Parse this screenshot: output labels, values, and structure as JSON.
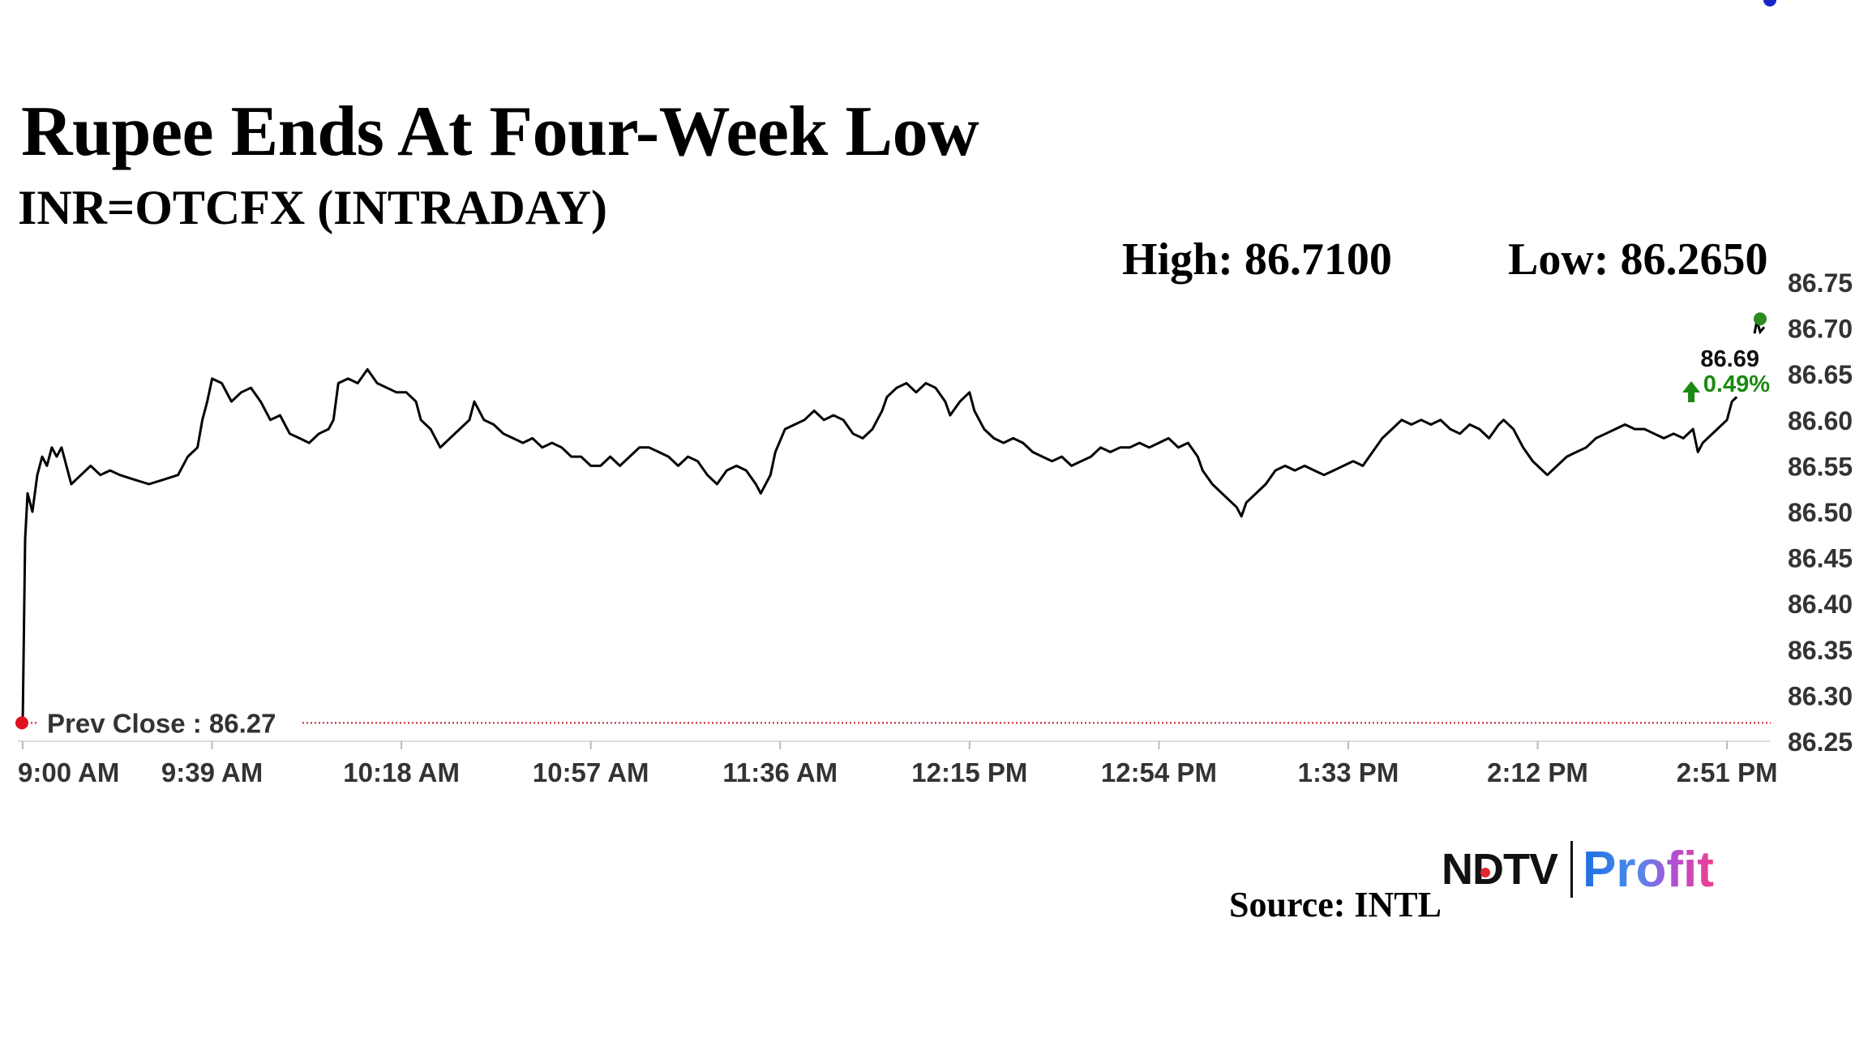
{
  "header": {
    "title": "Rupee Ends At Four-Week Low",
    "subtitle": "INR=OTCFX (INTRADAY)",
    "high_text": "High: 86.7100",
    "low_text": "Low: 86.2650"
  },
  "colors": {
    "line": "#000000",
    "prev_close_line": "#c0192b",
    "prev_close_marker": "#e0111f",
    "high_marker": "#2a8a1e",
    "last_marker": "#1626c8",
    "change_up": "#1c8a12",
    "axis_text": "#333333"
  },
  "chart_data": {
    "type": "line",
    "title": "Rupee Ends At Four-Week Low",
    "subtitle": "INR=OTCFX (INTRADAY)",
    "xlabel": "",
    "ylabel": "",
    "x_ticks": [
      "9:00 AM",
      "9:39 AM",
      "10:18 AM",
      "10:57 AM",
      "11:36 AM",
      "12:15 PM",
      "12:54 PM",
      "1:33 PM",
      "2:12 PM",
      "2:51 PM"
    ],
    "y_ticks": [
      "86.25",
      "86.30",
      "86.35",
      "86.40",
      "86.45",
      "86.50",
      "86.55",
      "86.60",
      "86.65",
      "86.70",
      "86.75"
    ],
    "ylim": [
      86.25,
      86.75
    ],
    "x_range_minutes": [
      0,
      360
    ],
    "grid": false,
    "prev_close": {
      "label": "Prev Close : 86.27",
      "value": 86.27
    },
    "high": 86.71,
    "low": 86.265,
    "last": {
      "value_label": "86.69",
      "change_label": "0.49%",
      "direction": "up"
    },
    "series": [
      {
        "points": [
          [
            0,
            86.27
          ],
          [
            0.5,
            86.47
          ],
          [
            1,
            86.52
          ],
          [
            2,
            86.5
          ],
          [
            3,
            86.54
          ],
          [
            4,
            86.56
          ],
          [
            5,
            86.55
          ],
          [
            6,
            86.57
          ],
          [
            7,
            86.56
          ],
          [
            8,
            86.57
          ],
          [
            9,
            86.55
          ],
          [
            10,
            86.53
          ],
          [
            12,
            86.54
          ],
          [
            14,
            86.55
          ],
          [
            16,
            86.54
          ],
          [
            18,
            86.545
          ],
          [
            20,
            86.54
          ],
          [
            23,
            86.535
          ],
          [
            26,
            86.53
          ],
          [
            29,
            86.535
          ],
          [
            32,
            86.54
          ],
          [
            34,
            86.56
          ],
          [
            36,
            86.57
          ],
          [
            37,
            86.6
          ],
          [
            38,
            86.62
          ],
          [
            39,
            86.645
          ],
          [
            41,
            86.64
          ],
          [
            43,
            86.62
          ],
          [
            45,
            86.63
          ],
          [
            47,
            86.635
          ],
          [
            49,
            86.62
          ],
          [
            51,
            86.6
          ],
          [
            53,
            86.605
          ],
          [
            55,
            86.585
          ],
          [
            57,
            86.58
          ],
          [
            59,
            86.575
          ],
          [
            61,
            86.585
          ],
          [
            63,
            86.59
          ],
          [
            64,
            86.6
          ],
          [
            65,
            86.64
          ],
          [
            67,
            86.645
          ],
          [
            69,
            86.64
          ],
          [
            71,
            86.655
          ],
          [
            73,
            86.64
          ],
          [
            75,
            86.635
          ],
          [
            77,
            86.63
          ],
          [
            79,
            86.63
          ],
          [
            81,
            86.62
          ],
          [
            82,
            86.6
          ],
          [
            84,
            86.59
          ],
          [
            86,
            86.57
          ],
          [
            88,
            86.58
          ],
          [
            90,
            86.59
          ],
          [
            92,
            86.6
          ],
          [
            93,
            86.62
          ],
          [
            95,
            86.6
          ],
          [
            97,
            86.595
          ],
          [
            99,
            86.585
          ],
          [
            101,
            86.58
          ],
          [
            103,
            86.575
          ],
          [
            105,
            86.58
          ],
          [
            107,
            86.57
          ],
          [
            109,
            86.575
          ],
          [
            111,
            86.57
          ],
          [
            113,
            86.56
          ],
          [
            115,
            86.56
          ],
          [
            117,
            86.55
          ],
          [
            119,
            86.55
          ],
          [
            121,
            86.56
          ],
          [
            123,
            86.55
          ],
          [
            125,
            86.56
          ],
          [
            127,
            86.57
          ],
          [
            129,
            86.57
          ],
          [
            131,
            86.565
          ],
          [
            133,
            86.56
          ],
          [
            135,
            86.55
          ],
          [
            137,
            86.56
          ],
          [
            139,
            86.555
          ],
          [
            141,
            86.54
          ],
          [
            143,
            86.53
          ],
          [
            145,
            86.545
          ],
          [
            147,
            86.55
          ],
          [
            149,
            86.545
          ],
          [
            151,
            86.53
          ],
          [
            152,
            86.52
          ],
          [
            154,
            86.54
          ],
          [
            155,
            86.565
          ],
          [
            157,
            86.59
          ],
          [
            159,
            86.595
          ],
          [
            161,
            86.6
          ],
          [
            163,
            86.61
          ],
          [
            165,
            86.6
          ],
          [
            167,
            86.605
          ],
          [
            169,
            86.6
          ],
          [
            171,
            86.585
          ],
          [
            173,
            86.58
          ],
          [
            175,
            86.59
          ],
          [
            177,
            86.61
          ],
          [
            178,
            86.625
          ],
          [
            180,
            86.635
          ],
          [
            182,
            86.64
          ],
          [
            184,
            86.63
          ],
          [
            186,
            86.64
          ],
          [
            188,
            86.635
          ],
          [
            190,
            86.62
          ],
          [
            191,
            86.605
          ],
          [
            193,
            86.62
          ],
          [
            195,
            86.63
          ],
          [
            196,
            86.61
          ],
          [
            198,
            86.59
          ],
          [
            200,
            86.58
          ],
          [
            202,
            86.575
          ],
          [
            204,
            86.58
          ],
          [
            206,
            86.575
          ],
          [
            208,
            86.565
          ],
          [
            210,
            86.56
          ],
          [
            212,
            86.555
          ],
          [
            214,
            86.56
          ],
          [
            216,
            86.55
          ],
          [
            218,
            86.555
          ],
          [
            220,
            86.56
          ],
          [
            222,
            86.57
          ],
          [
            224,
            86.565
          ],
          [
            226,
            86.57
          ],
          [
            228,
            86.57
          ],
          [
            230,
            86.575
          ],
          [
            232,
            86.57
          ],
          [
            234,
            86.575
          ],
          [
            236,
            86.58
          ],
          [
            238,
            86.57
          ],
          [
            240,
            86.575
          ],
          [
            242,
            86.56
          ],
          [
            243,
            86.545
          ],
          [
            245,
            86.53
          ],
          [
            247,
            86.52
          ],
          [
            249,
            86.51
          ],
          [
            250,
            86.505
          ],
          [
            251,
            86.495
          ],
          [
            252,
            86.51
          ],
          [
            254,
            86.52
          ],
          [
            256,
            86.53
          ],
          [
            258,
            86.545
          ],
          [
            260,
            86.55
          ],
          [
            262,
            86.545
          ],
          [
            264,
            86.55
          ],
          [
            266,
            86.545
          ],
          [
            268,
            86.54
          ],
          [
            270,
            86.545
          ],
          [
            272,
            86.55
          ],
          [
            274,
            86.555
          ],
          [
            276,
            86.55
          ],
          [
            278,
            86.565
          ],
          [
            280,
            86.58
          ],
          [
            282,
            86.59
          ],
          [
            284,
            86.6
          ],
          [
            286,
            86.595
          ],
          [
            288,
            86.6
          ],
          [
            290,
            86.595
          ],
          [
            292,
            86.6
          ],
          [
            294,
            86.59
          ],
          [
            296,
            86.585
          ],
          [
            298,
            86.595
          ],
          [
            300,
            86.59
          ],
          [
            302,
            86.58
          ],
          [
            304,
            86.595
          ],
          [
            305,
            86.6
          ],
          [
            307,
            86.59
          ],
          [
            309,
            86.57
          ],
          [
            311,
            86.555
          ],
          [
            313,
            86.545
          ],
          [
            314,
            86.54
          ],
          [
            316,
            86.55
          ],
          [
            318,
            86.56
          ],
          [
            320,
            86.565
          ],
          [
            322,
            86.57
          ],
          [
            324,
            86.58
          ],
          [
            326,
            86.585
          ],
          [
            328,
            86.59
          ],
          [
            330,
            86.595
          ],
          [
            332,
            86.59
          ],
          [
            334,
            86.59
          ],
          [
            336,
            86.585
          ],
          [
            338,
            86.58
          ],
          [
            340,
            86.585
          ],
          [
            342,
            86.58
          ],
          [
            344,
            86.59
          ],
          [
            345,
            86.565
          ],
          [
            346,
            86.575
          ],
          [
            347,
            86.58
          ],
          [
            349,
            86.59
          ],
          [
            351,
            86.6
          ],
          [
            352,
            86.62
          ],
          [
            353,
            86.625
          ]
        ]
      }
    ]
  },
  "branding": {
    "logo_text_1": "NDTV",
    "logo_text_2": "Profit",
    "source": "Source: INTL"
  }
}
